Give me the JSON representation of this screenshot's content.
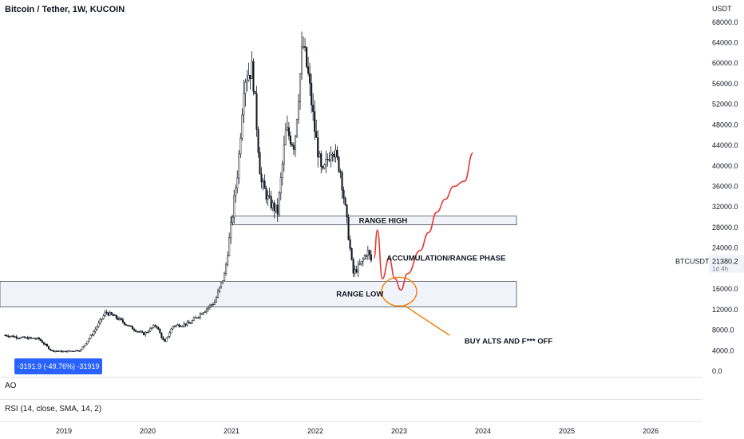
{
  "header": {
    "title": "Bitcoin / Tether, 1W, KUCOIN"
  },
  "indicators": {
    "ao": "AO",
    "rsi": "RSI (14, close, SMA, 14, 2)"
  },
  "measure_badge": "-3191.9 (-49.76%) -31919",
  "price_label": {
    "symbol": "BTCUSDT",
    "price": "21380.2",
    "countdown": "1d 4h",
    "color": "#f0f3fa"
  },
  "colors": {
    "up": "#ffffff",
    "down": "#131722",
    "projection": "#e53935",
    "callout": "#f57c00",
    "box_fill": "#f0f3fa",
    "box_stroke": "#131722"
  },
  "chart_data": {
    "type": "candlestick",
    "currency": "USDT",
    "y_ticks": [
      "68000.0",
      "64000.0",
      "60000.0",
      "56000.0",
      "52000.0",
      "48000.0",
      "44000.0",
      "40000.0",
      "36000.0",
      "32000.0",
      "28000.0",
      "24000.0",
      "20000.0",
      "16000.0",
      "12000.0",
      "8000.0",
      "4000.0",
      "0.0"
    ],
    "ylim": [
      0,
      70000
    ],
    "x_ticks": [
      "2019",
      "2020",
      "2021",
      "2022",
      "2023",
      "2024",
      "2025",
      "2026"
    ],
    "price_path": [
      {
        "date": "2018.30",
        "price": 7000
      },
      {
        "date": "2018.50",
        "price": 6500
      },
      {
        "date": "2018.70",
        "price": 6300
      },
      {
        "date": "2018.85",
        "price": 4000
      },
      {
        "date": "2019.00",
        "price": 3800
      },
      {
        "date": "2019.20",
        "price": 4100
      },
      {
        "date": "2019.35",
        "price": 7500
      },
      {
        "date": "2019.50",
        "price": 11500
      },
      {
        "date": "2019.65",
        "price": 10200
      },
      {
        "date": "2019.80",
        "price": 8500
      },
      {
        "date": "2019.95",
        "price": 7200
      },
      {
        "date": "2020.10",
        "price": 9000
      },
      {
        "date": "2020.20",
        "price": 5500
      },
      {
        "date": "2020.30",
        "price": 8800
      },
      {
        "date": "2020.50",
        "price": 9300
      },
      {
        "date": "2020.65",
        "price": 11500
      },
      {
        "date": "2020.80",
        "price": 13500
      },
      {
        "date": "2020.92",
        "price": 19000
      },
      {
        "date": "2021.00",
        "price": 29000
      },
      {
        "date": "2021.08",
        "price": 40000
      },
      {
        "date": "2021.15",
        "price": 57000
      },
      {
        "date": "2021.25",
        "price": 59000
      },
      {
        "date": "2021.35",
        "price": 37000
      },
      {
        "date": "2021.45",
        "price": 33000
      },
      {
        "date": "2021.55",
        "price": 31000
      },
      {
        "date": "2021.65",
        "price": 47000
      },
      {
        "date": "2021.75",
        "price": 44000
      },
      {
        "date": "2021.85",
        "price": 64000
      },
      {
        "date": "2021.92",
        "price": 57000
      },
      {
        "date": "2022.00",
        "price": 46000
      },
      {
        "date": "2022.08",
        "price": 38000
      },
      {
        "date": "2022.20",
        "price": 44000
      },
      {
        "date": "2022.30",
        "price": 39000
      },
      {
        "date": "2022.37",
        "price": 30000
      },
      {
        "date": "2022.45",
        "price": 19000
      },
      {
        "date": "2022.55",
        "price": 21000
      },
      {
        "date": "2022.62",
        "price": 23500
      },
      {
        "date": "2022.67",
        "price": 21380
      }
    ],
    "zones": [
      {
        "label": "RANGE HIGH",
        "from": "2021.0",
        "to": "2024.4",
        "low": 28500,
        "high": 30200
      },
      {
        "label": "RANGE LOW",
        "from": "2018.0",
        "to": "2024.4",
        "low": 12500,
        "high": 17500
      }
    ],
    "annotations": [
      "RANGE HIGH",
      "RANGE LOW",
      "ACCUMULATION/RANGE PHASE",
      "BUY ALTS AND F*** OFF"
    ],
    "projection": [
      {
        "date": "2022.70",
        "price": 22000
      },
      {
        "date": "2022.74",
        "price": 27500
      },
      {
        "date": "2022.80",
        "price": 18000
      },
      {
        "date": "2022.88",
        "price": 22000
      },
      {
        "date": "2022.95",
        "price": 18000
      },
      {
        "date": "2023.02",
        "price": 15800
      },
      {
        "date": "2023.10",
        "price": 19000
      },
      {
        "date": "2023.25",
        "price": 23500
      },
      {
        "date": "2023.35",
        "price": 27000
      },
      {
        "date": "2023.45",
        "price": 31000
      },
      {
        "date": "2023.55",
        "price": 33500
      },
      {
        "date": "2023.65",
        "price": 36000
      },
      {
        "date": "2023.78",
        "price": 37000
      },
      {
        "date": "2023.88",
        "price": 42500
      }
    ],
    "grid": false
  }
}
